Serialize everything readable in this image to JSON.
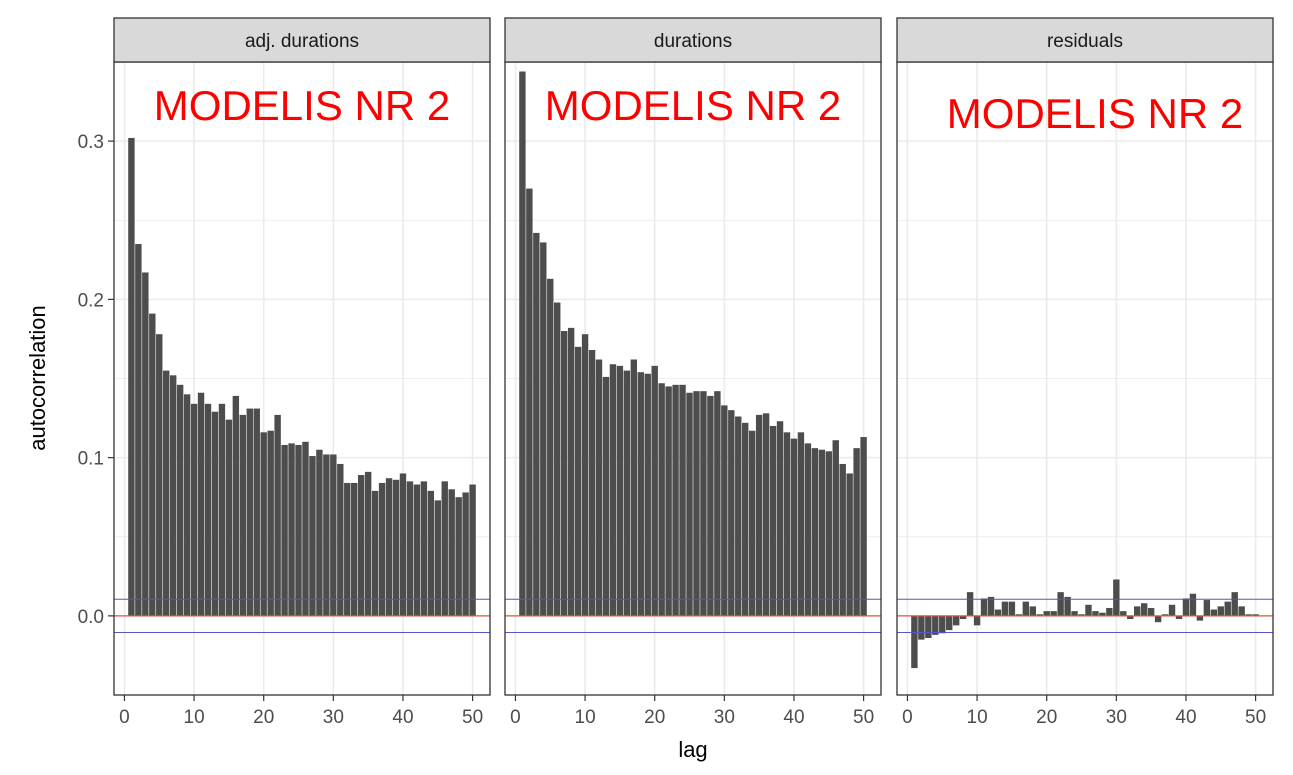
{
  "chart_data": {
    "type": "bar",
    "facet_type": "faceted",
    "xlabel": "lag",
    "ylabel": "autocorrelation",
    "xlim": [
      -1.5,
      52.5
    ],
    "ylim": [
      -0.05,
      0.35
    ],
    "x_ticks": [
      0,
      10,
      20,
      30,
      40,
      50
    ],
    "y_ticks": [
      0.0,
      0.1,
      0.2,
      0.3
    ],
    "y_tick_labels": [
      "0.0",
      "0.1",
      "0.2",
      "0.3"
    ],
    "reference_lines": {
      "zero": 0,
      "upper": 0.0105,
      "lower": -0.0105
    },
    "colors": {
      "bars": "#4d4d4d",
      "zero_line": "#e8523f",
      "conf_lines": "#5555cc",
      "strip": "#d9d9d9",
      "grid": "#ebebeb",
      "overlay_text": "#ff0000"
    },
    "grid": true,
    "panels": [
      {
        "strip_label": "adj. durations",
        "overlay": "MODELIS NR 2",
        "x": [
          1,
          2,
          3,
          4,
          5,
          6,
          7,
          8,
          9,
          10,
          11,
          12,
          13,
          14,
          15,
          16,
          17,
          18,
          19,
          20,
          21,
          22,
          23,
          24,
          25,
          26,
          27,
          28,
          29,
          30,
          31,
          32,
          33,
          34,
          35,
          36,
          37,
          38,
          39,
          40,
          41,
          42,
          43,
          44,
          45,
          46,
          47,
          48,
          49,
          50
        ],
        "values": [
          0.302,
          0.235,
          0.217,
          0.191,
          0.178,
          0.155,
          0.152,
          0.146,
          0.14,
          0.134,
          0.141,
          0.134,
          0.129,
          0.134,
          0.124,
          0.139,
          0.127,
          0.131,
          0.131,
          0.116,
          0.117,
          0.127,
          0.108,
          0.109,
          0.108,
          0.11,
          0.101,
          0.105,
          0.102,
          0.102,
          0.096,
          0.084,
          0.084,
          0.089,
          0.091,
          0.079,
          0.084,
          0.087,
          0.086,
          0.09,
          0.085,
          0.083,
          0.085,
          0.079,
          0.073,
          0.085,
          0.08,
          0.075,
          0.078,
          0.083
        ]
      },
      {
        "strip_label": "durations",
        "overlay": "MODELIS NR 2",
        "x": [
          1,
          2,
          3,
          4,
          5,
          6,
          7,
          8,
          9,
          10,
          11,
          12,
          13,
          14,
          15,
          16,
          17,
          18,
          19,
          20,
          21,
          22,
          23,
          24,
          25,
          26,
          27,
          28,
          29,
          30,
          31,
          32,
          33,
          34,
          35,
          36,
          37,
          38,
          39,
          40,
          41,
          42,
          43,
          44,
          45,
          46,
          47,
          48,
          49,
          50
        ],
        "values": [
          0.344,
          0.27,
          0.242,
          0.236,
          0.213,
          0.198,
          0.18,
          0.182,
          0.17,
          0.178,
          0.168,
          0.162,
          0.151,
          0.159,
          0.158,
          0.155,
          0.162,
          0.154,
          0.153,
          0.158,
          0.147,
          0.145,
          0.146,
          0.146,
          0.141,
          0.142,
          0.142,
          0.139,
          0.142,
          0.133,
          0.13,
          0.126,
          0.122,
          0.117,
          0.127,
          0.128,
          0.12,
          0.123,
          0.116,
          0.112,
          0.116,
          0.109,
          0.106,
          0.105,
          0.104,
          0.111,
          0.096,
          0.09,
          0.106,
          0.113
        ]
      },
      {
        "strip_label": "residuals",
        "overlay": "MODELIS NR 2",
        "x": [
          1,
          2,
          3,
          4,
          5,
          6,
          7,
          8,
          9,
          10,
          11,
          12,
          13,
          14,
          15,
          16,
          17,
          18,
          19,
          20,
          21,
          22,
          23,
          24,
          25,
          26,
          27,
          28,
          29,
          30,
          31,
          32,
          33,
          34,
          35,
          36,
          37,
          38,
          39,
          40,
          41,
          42,
          43,
          44,
          45,
          46,
          47,
          48,
          49,
          50
        ],
        "values": [
          -0.033,
          -0.015,
          -0.014,
          -0.012,
          -0.011,
          -0.009,
          -0.006,
          -0.002,
          0.015,
          -0.006,
          0.011,
          0.012,
          0.004,
          0.009,
          0.009,
          0.001,
          0.009,
          0.006,
          0.001,
          0.003,
          0.003,
          0.015,
          0.012,
          0.003,
          0.001,
          0.007,
          0.003,
          0.002,
          0.005,
          0.023,
          0.003,
          -0.002,
          0.006,
          0.008,
          0.005,
          -0.004,
          0.001,
          0.007,
          -0.002,
          0.011,
          0.014,
          -0.003,
          0.01,
          0.004,
          0.006,
          0.009,
          0.015,
          0.006,
          0.001,
          0.001
        ]
      }
    ]
  }
}
